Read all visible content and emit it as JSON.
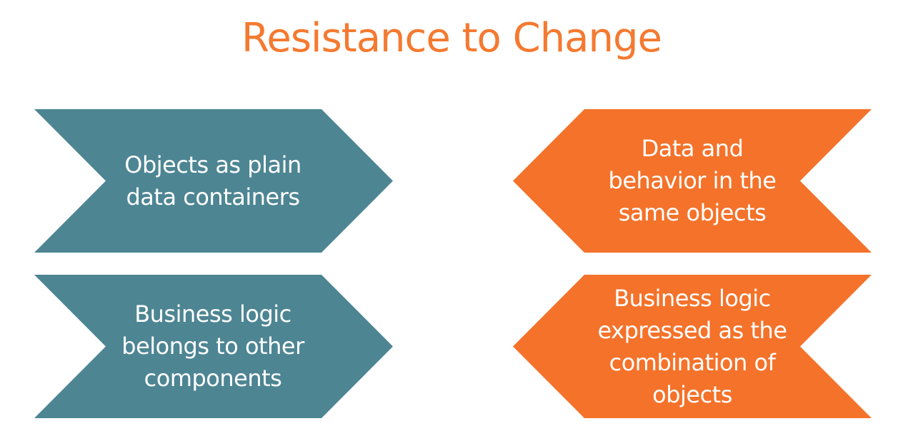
{
  "title": "Resistance to Change",
  "colors": {
    "title": "#f47a30",
    "teal": "#4d8593",
    "orange": "#f4722a"
  },
  "left_column": [
    {
      "text": "Objects as plain\ndata containers"
    },
    {
      "text": "Business logic\nbelongs to other\ncomponents"
    }
  ],
  "right_column": [
    {
      "text": "Data and\nbehavior in the\nsame objects"
    },
    {
      "text": "Business logic\nexpressed as the\ncombination of\nobjects"
    }
  ]
}
